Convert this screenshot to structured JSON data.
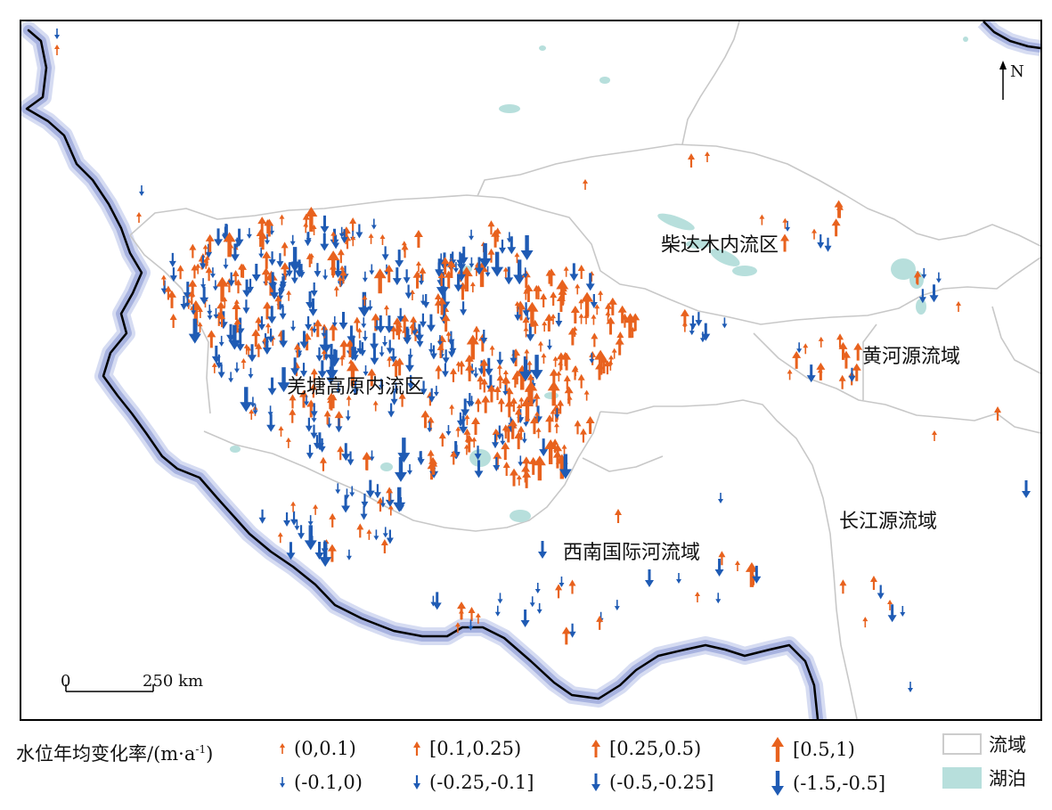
{
  "regions": {
    "qiangtang": "羌塘高原内流区",
    "qaidam": "柴达木内流区",
    "yellow_river": "黄河源流域",
    "yangtze": "长江源流域",
    "southwest": "西南国际河流域"
  },
  "north_arrow": {
    "label": "N"
  },
  "scale_bar": {
    "start": "0",
    "end": "250 km"
  },
  "legend": {
    "title": "水位年均变化率/(m·a",
    "title_sup": "-1",
    "title_close": ")",
    "rise": [
      {
        "label": "(0,0.1)",
        "color": "#e8621e",
        "size_class": 1
      },
      {
        "label": "[0.1,0.25)",
        "color": "#e8621e",
        "size_class": 2
      },
      {
        "label": "[0.25,0.5)",
        "color": "#e8621e",
        "size_class": 3
      },
      {
        "label": "[0.5,1)",
        "color": "#e8621e",
        "size_class": 4
      }
    ],
    "fall": [
      {
        "label": "(-0.1,0)",
        "color": "#1f5bb4",
        "size_class": 1
      },
      {
        "label": "(-0.25,-0.1]",
        "color": "#1f5bb4",
        "size_class": 2
      },
      {
        "label": "(-0.5,-0.25]",
        "color": "#1f5bb4",
        "size_class": 3
      },
      {
        "label": "(-1.5,-0.5]",
        "color": "#1f5bb4",
        "size_class": 4
      }
    ],
    "basin": {
      "label": "流域",
      "color": "#cccccc"
    },
    "lake": {
      "label": "湖泊",
      "color": "#b7dfdc"
    }
  }
}
